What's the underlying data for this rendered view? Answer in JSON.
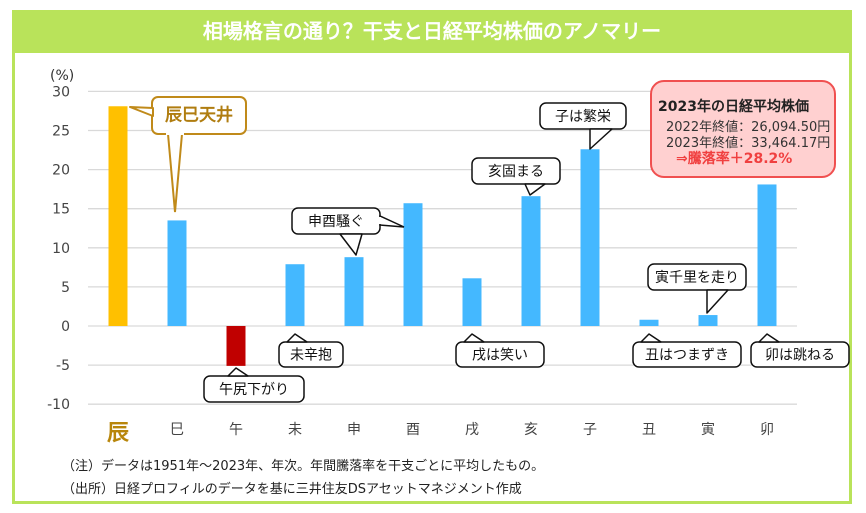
{
  "header": {
    "title": "相場格言の通り？干支と日経平均株価のアノマリー"
  },
  "chart_data": {
    "type": "bar",
    "title": "相場格言の通り？干支と日経平均株価のアノマリー",
    "ylabel": "(%)",
    "xlabel": "",
    "ylim": [
      -10,
      30
    ],
    "yticks": [
      30,
      25,
      20,
      15,
      10,
      5,
      0,
      -5,
      -10
    ],
    "grid": true,
    "categories": [
      "辰",
      "巳",
      "午",
      "未",
      "申",
      "酉",
      "戌",
      "亥",
      "子",
      "丑",
      "寅",
      "卯"
    ],
    "values": [
      28.1,
      13.5,
      -5.1,
      7.9,
      8.8,
      15.7,
      6.1,
      16.6,
      22.6,
      0.8,
      1.4,
      18.1
    ],
    "bar_colors": [
      "#ffc000",
      "#44b8ff",
      "#c00000",
      "#44b8ff",
      "#44b8ff",
      "#44b8ff",
      "#44b8ff",
      "#44b8ff",
      "#44b8ff",
      "#44b8ff",
      "#44b8ff",
      "#44b8ff"
    ],
    "highlight_category": "辰",
    "highlight_color": "#b8860b",
    "annotations": [
      {
        "text": "辰巳天井",
        "target": [
          "辰",
          "巳"
        ],
        "style": "highlight"
      },
      {
        "text": "午尻下がり",
        "target": "午",
        "position": "below"
      },
      {
        "text": "未辛抱",
        "target": "未",
        "position": "below"
      },
      {
        "text": "申酉騒ぐ",
        "target": [
          "申",
          "酉"
        ],
        "position": "above"
      },
      {
        "text": "戌は笑い",
        "target": "戌",
        "position": "below"
      },
      {
        "text": "亥固まる",
        "target": "亥",
        "position": "above"
      },
      {
        "text": "子は繁栄",
        "target": "子",
        "position": "above"
      },
      {
        "text": "丑はつまずき",
        "target": "丑",
        "position": "below"
      },
      {
        "text": "寅千里を走り",
        "target": "寅",
        "position": "above"
      },
      {
        "text": "卯は跳ねる",
        "target": "卯",
        "position": "below"
      }
    ]
  },
  "infobox": {
    "title": "2023年の日経平均株価",
    "line1": "2022年終値：26,094.50円",
    "line2": "2023年終値：33,464.17円",
    "result": "⇒騰落率＋28.2%"
  },
  "notes": {
    "note": "（注）データは1951年～2023年、年次。年間騰落率を干支ごとに平均したもの。",
    "source": "（出所）日経プロフィルのデータを基に三井住友DSアセットマネジメント作成"
  },
  "colors": {
    "frame": "#b9e35a",
    "bar": "#44b8ff",
    "highlight": "#ffc000",
    "negative": "#c00000",
    "infobox_border": "#f05050"
  }
}
